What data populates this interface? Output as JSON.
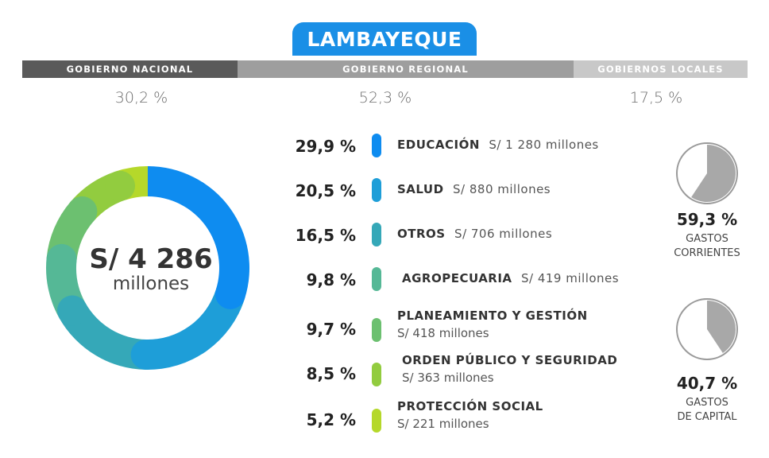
{
  "title": "LAMBAYEQUE",
  "government_levels": [
    {
      "label": "GOBIERNO NACIONAL",
      "percent": "30,2 %",
      "color": "#5a5a5a"
    },
    {
      "label": "GOBIERNO REGIONAL",
      "percent": "52,3 %",
      "color": "#9e9e9e"
    },
    {
      "label": "GOBIERNOS LOCALES",
      "percent": "17,5 %",
      "color": "#c8c8c8"
    }
  ],
  "total": {
    "amount": "S/ 4 286",
    "unit": "millones"
  },
  "categories": [
    {
      "percent": "29,9 %",
      "name": "EDUCACIÓN",
      "amount": "S/ 1 280 millones",
      "color": "#0e8cf0"
    },
    {
      "percent": "20,5 %",
      "name": "SALUD",
      "amount": "S/ 880  millones",
      "color": "#1e9ed8"
    },
    {
      "percent": "16,5 %",
      "name": "OTROS",
      "amount": "S/ 706  millones",
      "color": "#35a8b8"
    },
    {
      "percent": "9,8 %",
      "name": "AGROPECUARIA",
      "amount": "S/ 419 millones",
      "color": "#55b896"
    },
    {
      "percent": "9,7 %",
      "name": "PLANEAMIENTO Y GESTIÓN",
      "amount": "S/ 418 millones",
      "color": "#6cc070"
    },
    {
      "percent": "8,5 %",
      "name": "ORDEN PÚBLICO Y SEGURIDAD",
      "amount": "S/ 363 millones",
      "color": "#92cc3f"
    },
    {
      "percent": "5,2 %",
      "name": "PROTECCIÓN SOCIAL",
      "amount": "S/ 221 millones",
      "color": "#b5d82a"
    }
  ],
  "spending_types": [
    {
      "percent": "59,3 %",
      "label_line1": "GASTOS",
      "label_line2": "CORRIENTES",
      "fraction": 0.593
    },
    {
      "percent": "40,7 %",
      "label_line1": "GASTOS",
      "label_line2": "DE CAPITAL",
      "fraction": 0.407
    }
  ],
  "chart_data": [
    {
      "type": "pie",
      "categories": [
        "EDUCACIÓN",
        "SALUD",
        "OTROS",
        "AGROPECUARIA",
        "PLANEAMIENTO Y GESTIÓN",
        "ORDEN PÚBLICO Y SEGURIDAD",
        "PROTECCIÓN SOCIAL"
      ],
      "values": [
        29.9,
        20.5,
        16.5,
        9.8,
        9.7,
        8.5,
        5.2
      ],
      "amounts_millions": [
        1280,
        880,
        706,
        419,
        418,
        363,
        221
      ],
      "title": "LAMBAYEQUE",
      "center_label": "S/ 4 286 millones"
    },
    {
      "type": "pie",
      "categories": [
        "GASTOS CORRIENTES",
        "GASTOS DE CAPITAL"
      ],
      "values": [
        59.3,
        40.7
      ]
    }
  ]
}
